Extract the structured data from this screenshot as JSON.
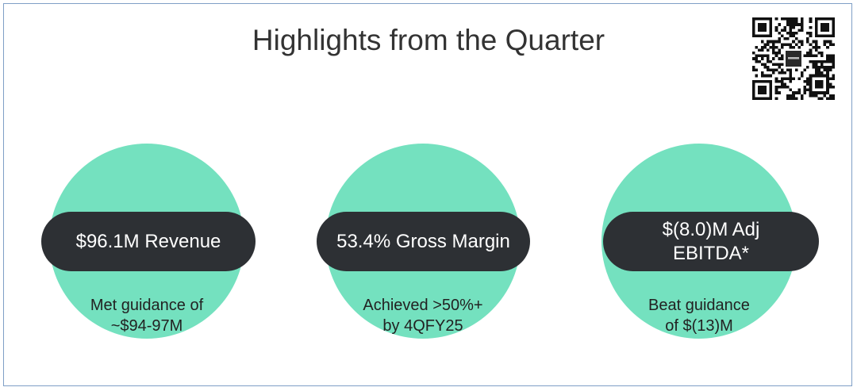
{
  "slide": {
    "title": "Highlights from the Quarter",
    "accent_color": "#74e1bf",
    "pill_color": "#2d3034"
  },
  "highlights": [
    {
      "metric_lines": [
        "$96.1M Revenue"
      ],
      "caption_lines": [
        "Met guidance of",
        "~$94-97M"
      ]
    },
    {
      "metric_lines": [
        "53.4% Gross Margin"
      ],
      "caption_lines": [
        "Achieved >50%+",
        "by 4QFY25"
      ]
    },
    {
      "metric_lines": [
        "$(8.0)M Adj",
        "EBITDA*"
      ],
      "caption_lines": [
        "Beat guidance",
        "of $(13)M"
      ]
    }
  ],
  "qr_code": {
    "icon": "qr-code-icon"
  }
}
